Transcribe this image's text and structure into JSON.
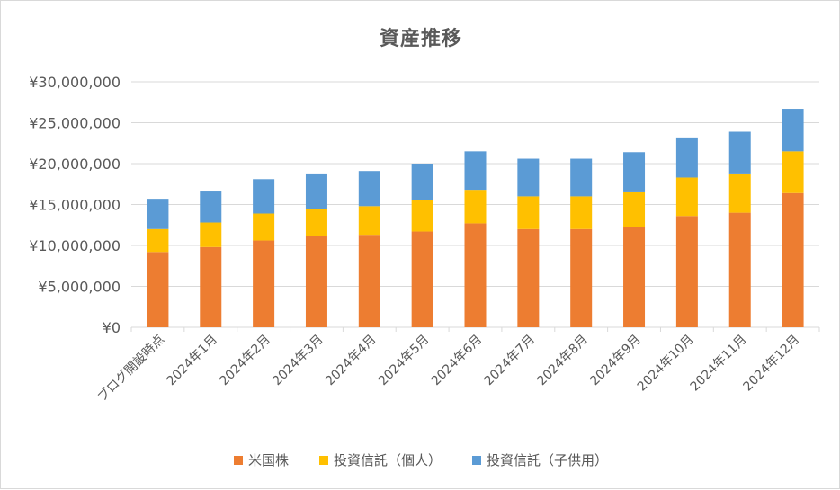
{
  "chart_data": {
    "type": "bar",
    "stacked": true,
    "title": "資産推移",
    "xlabel": "",
    "ylabel": "",
    "ylim": [
      0,
      30000000
    ],
    "yticks": [
      0,
      5000000,
      10000000,
      15000000,
      20000000,
      25000000,
      30000000
    ],
    "ytick_labels": [
      "¥0",
      "¥5,000,000",
      "¥10,000,000",
      "¥15,000,000",
      "¥20,000,000",
      "¥25,000,000",
      "¥30,000,000"
    ],
    "grid": true,
    "legend_position": "bottom",
    "categories": [
      "ブログ開設時点",
      "2024年1月",
      "2024年2月",
      "2024年3月",
      "2024年4月",
      "2024年5月",
      "2024年6月",
      "2024年7月",
      "2024年8月",
      "2024年9月",
      "2024年10月",
      "2024年11月",
      "2024年12月"
    ],
    "series": [
      {
        "name": "米国株",
        "color": "#ed7d31",
        "values": [
          9200000,
          9800000,
          10600000,
          11100000,
          11300000,
          11700000,
          12700000,
          12000000,
          12000000,
          12300000,
          13600000,
          14000000,
          16400000
        ]
      },
      {
        "name": "投資信託（個人）",
        "color": "#ffc000",
        "values": [
          2800000,
          3000000,
          3300000,
          3400000,
          3500000,
          3800000,
          4100000,
          4000000,
          4000000,
          4300000,
          4700000,
          4800000,
          5100000
        ]
      },
      {
        "name": "投資信託（子供用）",
        "color": "#5b9bd5",
        "values": [
          3700000,
          3900000,
          4200000,
          4300000,
          4300000,
          4500000,
          4700000,
          4600000,
          4600000,
          4800000,
          4900000,
          5100000,
          5200000
        ]
      }
    ]
  }
}
